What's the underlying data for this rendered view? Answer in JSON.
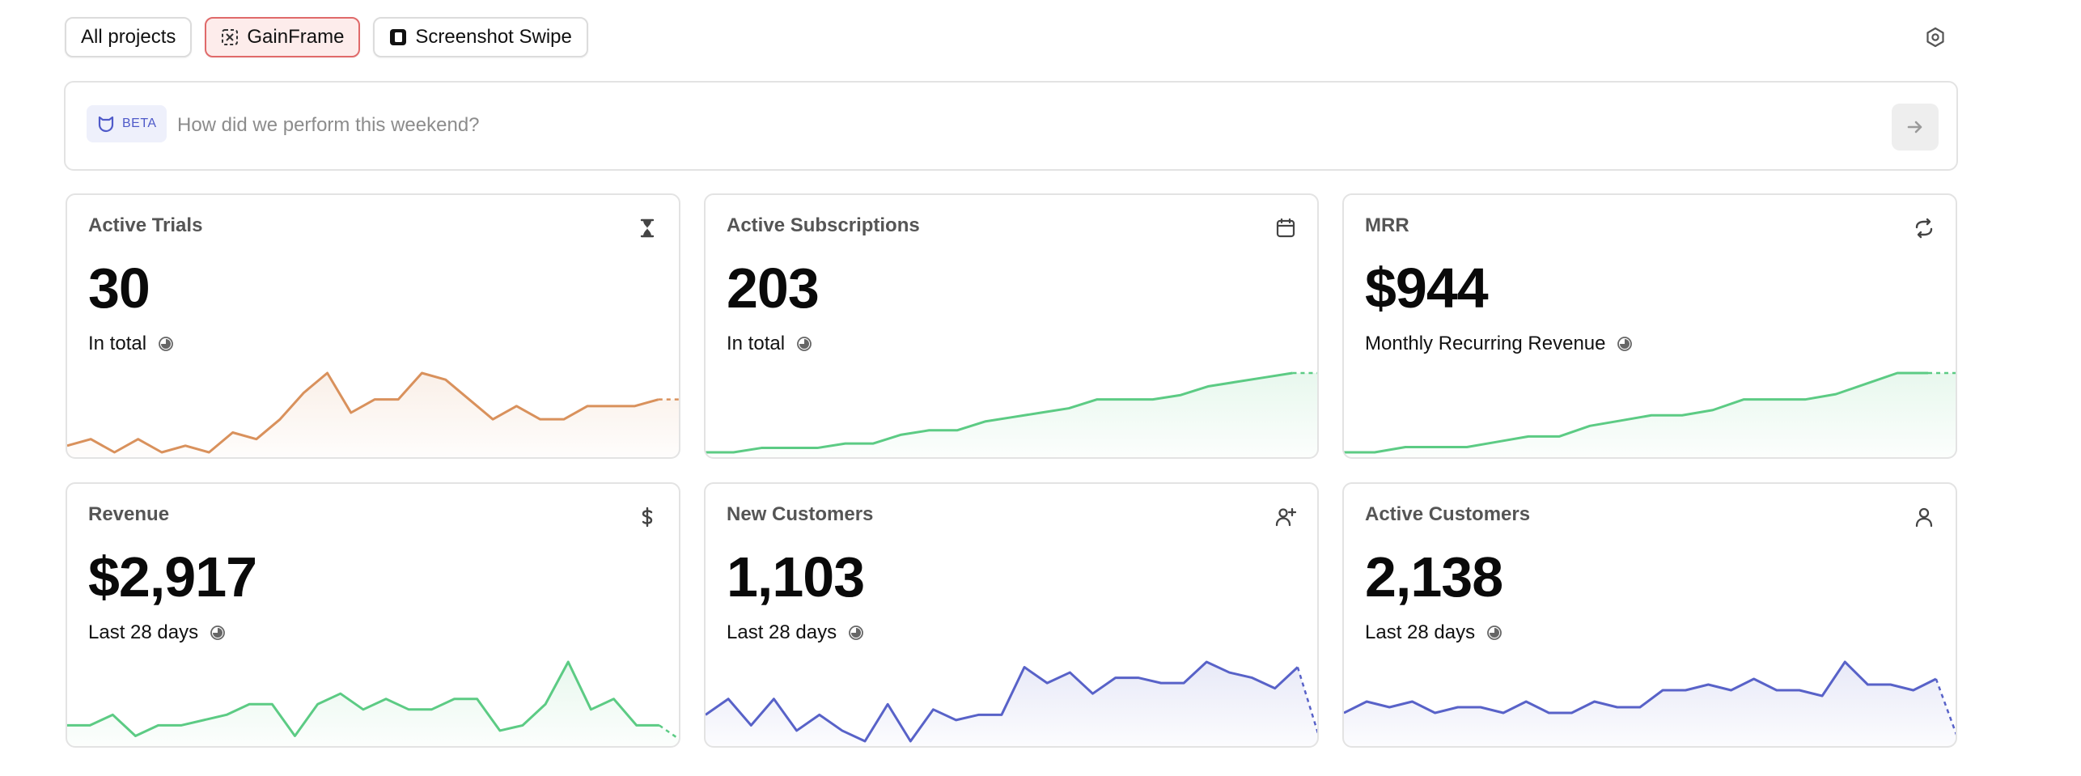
{
  "tabs": [
    {
      "label": "All projects",
      "active": false,
      "icon": null
    },
    {
      "label": "GainFrame",
      "active": true,
      "icon": "gainframe-logo-icon"
    },
    {
      "label": "Screenshot Swipe",
      "active": false,
      "icon": "screenshot-swipe-logo-icon"
    }
  ],
  "ask": {
    "badge": "BETA",
    "placeholder": "How did we perform this weekend?",
    "send_icon": "arrow-right-icon"
  },
  "colors": {
    "orange": "#d9915c",
    "green": "#5ccb84",
    "blue": "#5862c8",
    "active_tab_border": "#e06a6a",
    "active_tab_bg": "#fdeceb"
  },
  "cards": [
    {
      "title": "Active Trials",
      "value": "30",
      "subtitle": "In total",
      "icon": "hourglass-icon",
      "color": "orange",
      "chart_data": {
        "type": "line",
        "values": [
          3,
          4,
          2,
          4,
          2,
          3,
          2,
          5,
          4,
          7,
          11,
          14,
          8,
          10,
          10,
          14,
          13,
          10,
          7,
          9,
          7,
          7,
          9,
          9,
          9,
          10,
          10
        ],
        "projected_tail": 1
      }
    },
    {
      "title": "Active Subscriptions",
      "value": "203",
      "subtitle": "In total",
      "icon": "calendar-icon",
      "color": "green",
      "chart_data": {
        "type": "line",
        "values": [
          1,
          1,
          2,
          2,
          2,
          3,
          3,
          5,
          6,
          6,
          8,
          9,
          10,
          11,
          13,
          13,
          13,
          14,
          16,
          17,
          18,
          19,
          19
        ],
        "projected_tail": 1
      }
    },
    {
      "title": "MRR",
      "value": "$944",
      "subtitle": "Monthly Recurring Revenue",
      "icon": "refresh-icon",
      "color": "green",
      "chart_data": {
        "type": "line",
        "values": [
          1,
          1,
          2,
          2,
          2,
          3,
          4,
          4,
          6,
          7,
          8,
          8,
          9,
          11,
          11,
          11,
          12,
          14,
          16,
          16,
          16
        ],
        "projected_tail": 1
      }
    },
    {
      "title": "Revenue",
      "value": "$2,917",
      "subtitle": "Last 28 days",
      "icon": "dollar-icon",
      "color": "green",
      "chart_data": {
        "type": "line",
        "values": [
          3,
          3,
          5,
          1,
          3,
          3,
          4,
          5,
          7,
          7,
          1,
          7,
          9,
          6,
          8,
          6,
          6,
          8,
          8,
          2,
          3,
          7,
          15,
          6,
          8,
          3,
          3,
          0
        ],
        "projected_tail": 1
      }
    },
    {
      "title": "New Customers",
      "value": "1,103",
      "subtitle": "Last 28 days",
      "icon": "user-plus-icon",
      "color": "blue",
      "chart_data": {
        "type": "line",
        "values": [
          6,
          9,
          4,
          9,
          3,
          6,
          3,
          1,
          8,
          1,
          7,
          5,
          6,
          6,
          15,
          12,
          14,
          10,
          13,
          13,
          12,
          12,
          16,
          14,
          13,
          11,
          15,
          1
        ],
        "projected_tail": 1
      }
    },
    {
      "title": "Active Customers",
      "value": "2,138",
      "subtitle": "Last 28 days",
      "icon": "user-icon",
      "color": "blue",
      "chart_data": {
        "type": "line",
        "values": [
          6,
          8,
          7,
          8,
          6,
          7,
          7,
          6,
          8,
          6,
          6,
          8,
          7,
          7,
          10,
          10,
          11,
          10,
          12,
          10,
          10,
          9,
          15,
          11,
          11,
          10,
          12,
          1
        ],
        "projected_tail": 1
      }
    }
  ]
}
